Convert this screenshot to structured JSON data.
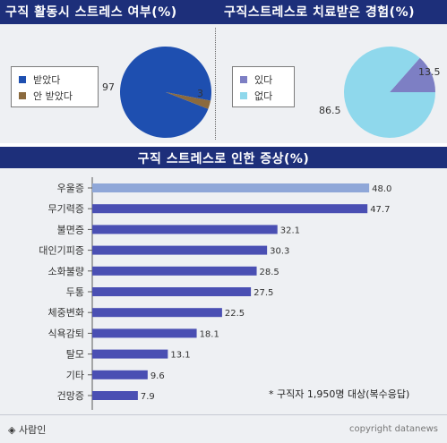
{
  "titles": {
    "left": "구직 활동시 스트레스 여부(%)",
    "right": "구직스트레스로 치료받은 경험(%)",
    "bar": "구직 스트레스로 인한 증상(%)"
  },
  "note": "* 구직자 1,950명 대상(복수응답)",
  "footer": {
    "brand_icon": "diamond-icon",
    "brand": "◈ 사람인",
    "copyright": "copyright datanews"
  },
  "chart_data": [
    {
      "type": "pie",
      "title": "구직 활동시 스트레스 여부(%)",
      "labels": [
        "받았다",
        "안 받았다"
      ],
      "values": [
        97,
        3
      ],
      "value_labels": [
        "97",
        "3"
      ],
      "colors": [
        "#1e4fb0",
        "#8b6a3e"
      ],
      "legend": "left"
    },
    {
      "type": "pie",
      "title": "구직스트레스로 치료받은 경험(%)",
      "labels": [
        "있다",
        "없다"
      ],
      "values": [
        13.5,
        86.5
      ],
      "value_labels": [
        "13.5",
        "86.5"
      ],
      "colors": [
        "#7d7fc4",
        "#8fd8ec"
      ],
      "legend": "left"
    },
    {
      "type": "bar",
      "orientation": "horizontal",
      "title": "구직 스트레스로 인한 증상(%)",
      "categories": [
        "우울증",
        "무기력증",
        "불면증",
        "대인기피증",
        "소화불량",
        "두통",
        "체중변화",
        "식욕감퇴",
        "탈모",
        "기타",
        "건망증"
      ],
      "values": [
        48.0,
        47.7,
        32.1,
        30.3,
        28.5,
        27.5,
        22.5,
        18.1,
        13.1,
        9.6,
        7.9
      ],
      "value_labels": [
        "48.0",
        "47.7",
        "32.1",
        "30.3",
        "28.5",
        "27.5",
        "22.5",
        "18.1",
        "13.1",
        "9.6",
        "7.9"
      ],
      "xlim": [
        0,
        50
      ],
      "colors": {
        "highlight": "#8fa7d8",
        "bar": "#4a4fb3",
        "axis": "#5a5a5a"
      },
      "grid": false
    }
  ]
}
